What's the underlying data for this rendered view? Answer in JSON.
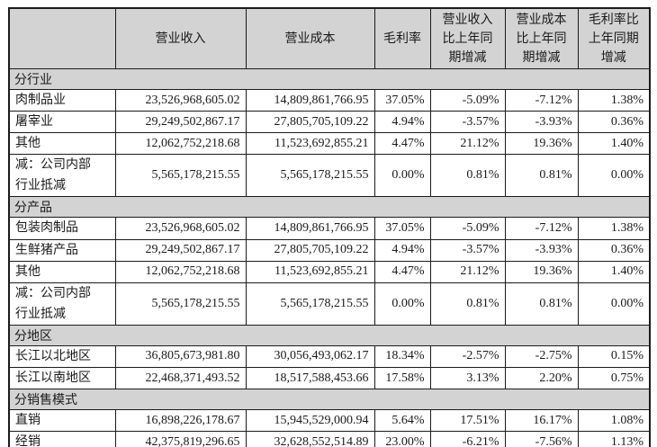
{
  "header": {
    "columns": [
      "",
      "营业收入",
      "营业成本",
      "毛利率",
      "营业收入\n比上年同\n期增减",
      "营业成本\n比上年同\n期增减",
      "毛利率比\n上年同期\n增减"
    ]
  },
  "sections": [
    {
      "title": "分行业",
      "rows": [
        [
          "肉制品业",
          "23,526,968,605.02",
          "14,809,861,766.95",
          "37.05%",
          "-5.09%",
          "-7.12%",
          "1.38%"
        ],
        [
          "屠宰业",
          "29,249,502,867.17",
          "27,805,705,109.22",
          "4.94%",
          "-3.57%",
          "-3.93%",
          "0.36%"
        ],
        [
          "其他",
          "12,062,752,218.68",
          "11,523,692,855.21",
          "4.47%",
          "21.12%",
          "19.36%",
          "1.40%"
        ],
        [
          "减：公司内部\n行业抵减",
          "5,565,178,215.55",
          "5,565,178,215.55",
          "0.00%",
          "0.81%",
          "0.81%",
          "0.00%"
        ]
      ]
    },
    {
      "title": "分产品",
      "rows": [
        [
          "包装肉制品",
          "23,526,968,605.02",
          "14,809,861,766.95",
          "37.05%",
          "-5.09%",
          "-7.12%",
          "1.38%"
        ],
        [
          "生鲜猪产品",
          "29,249,502,867.17",
          "27,805,705,109.22",
          "4.94%",
          "-3.57%",
          "-3.93%",
          "0.36%"
        ],
        [
          "其他",
          "12,062,752,218.68",
          "11,523,692,855.21",
          "4.47%",
          "21.12%",
          "19.36%",
          "1.40%"
        ],
        [
          "减：公司内部\n行业抵减",
          "5,565,178,215.55",
          "5,565,178,215.55",
          "0.00%",
          "0.81%",
          "0.81%",
          "0.00%"
        ]
      ]
    },
    {
      "title": "分地区",
      "rows": [
        [
          "长江以北地区",
          "36,805,673,981.80",
          "30,056,493,062.17",
          "18.34%",
          "-2.57%",
          "-2.75%",
          "0.15%"
        ],
        [
          "长江以南地区",
          "22,468,371,493.52",
          "18,517,588,453.66",
          "17.58%",
          "3.13%",
          "2.20%",
          "0.75%"
        ]
      ]
    },
    {
      "title": "分销售模式",
      "rows": [
        [
          "直销",
          "16,898,226,178.67",
          "15,945,529,000.94",
          "5.64%",
          "17.51%",
          "16.17%",
          "1.08%"
        ],
        [
          "经销",
          "42,375,819,296.65",
          "32,628,552,514.89",
          "23.00%",
          "-6.21%",
          "-7.56%",
          "1.13%"
        ]
      ]
    }
  ],
  "colors": {
    "header_bg": "#d3d3d3",
    "section_bg": "#d3d3d3",
    "row_bg": "#ffffff",
    "border": "#1b1b1b",
    "text": "#1a1a1a"
  }
}
